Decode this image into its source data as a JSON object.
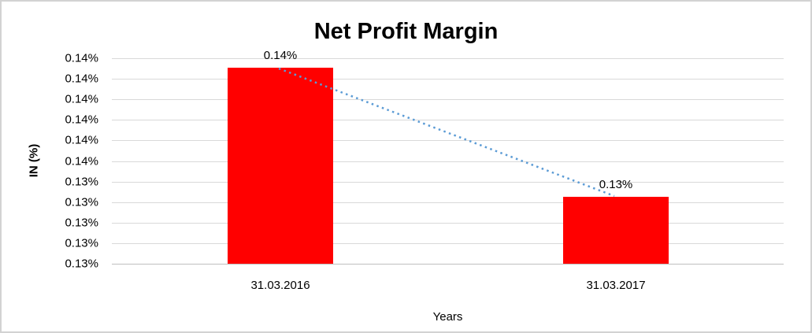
{
  "window": {
    "background_color": "#ffffff",
    "border_color": "#d2d2d2"
  },
  "chart_data": {
    "type": "bar",
    "title": "Net Profit Margin",
    "xlabel": "Years",
    "ylabel": "IN (%)",
    "categories": [
      "31.03.2016",
      "31.03.2017"
    ],
    "values": [
      0.14,
      0.13
    ],
    "unit": "%",
    "data_labels": [
      "0.14%",
      "0.13%"
    ],
    "ytick_labels": [
      "0.14%",
      "0.14%",
      "0.14%",
      "0.14%",
      "0.14%",
      "0.14%",
      "0.13%",
      "0.13%",
      "0.13%",
      "0.13%",
      "0.13%"
    ],
    "bar_color": "#ff0000",
    "gridline_color": "#d9d9d9",
    "axis_line_color": "#bfbfbf",
    "trendline": {
      "style": "dotted",
      "color": "#5b9bd5"
    },
    "grid": true,
    "legend_position": "none"
  }
}
